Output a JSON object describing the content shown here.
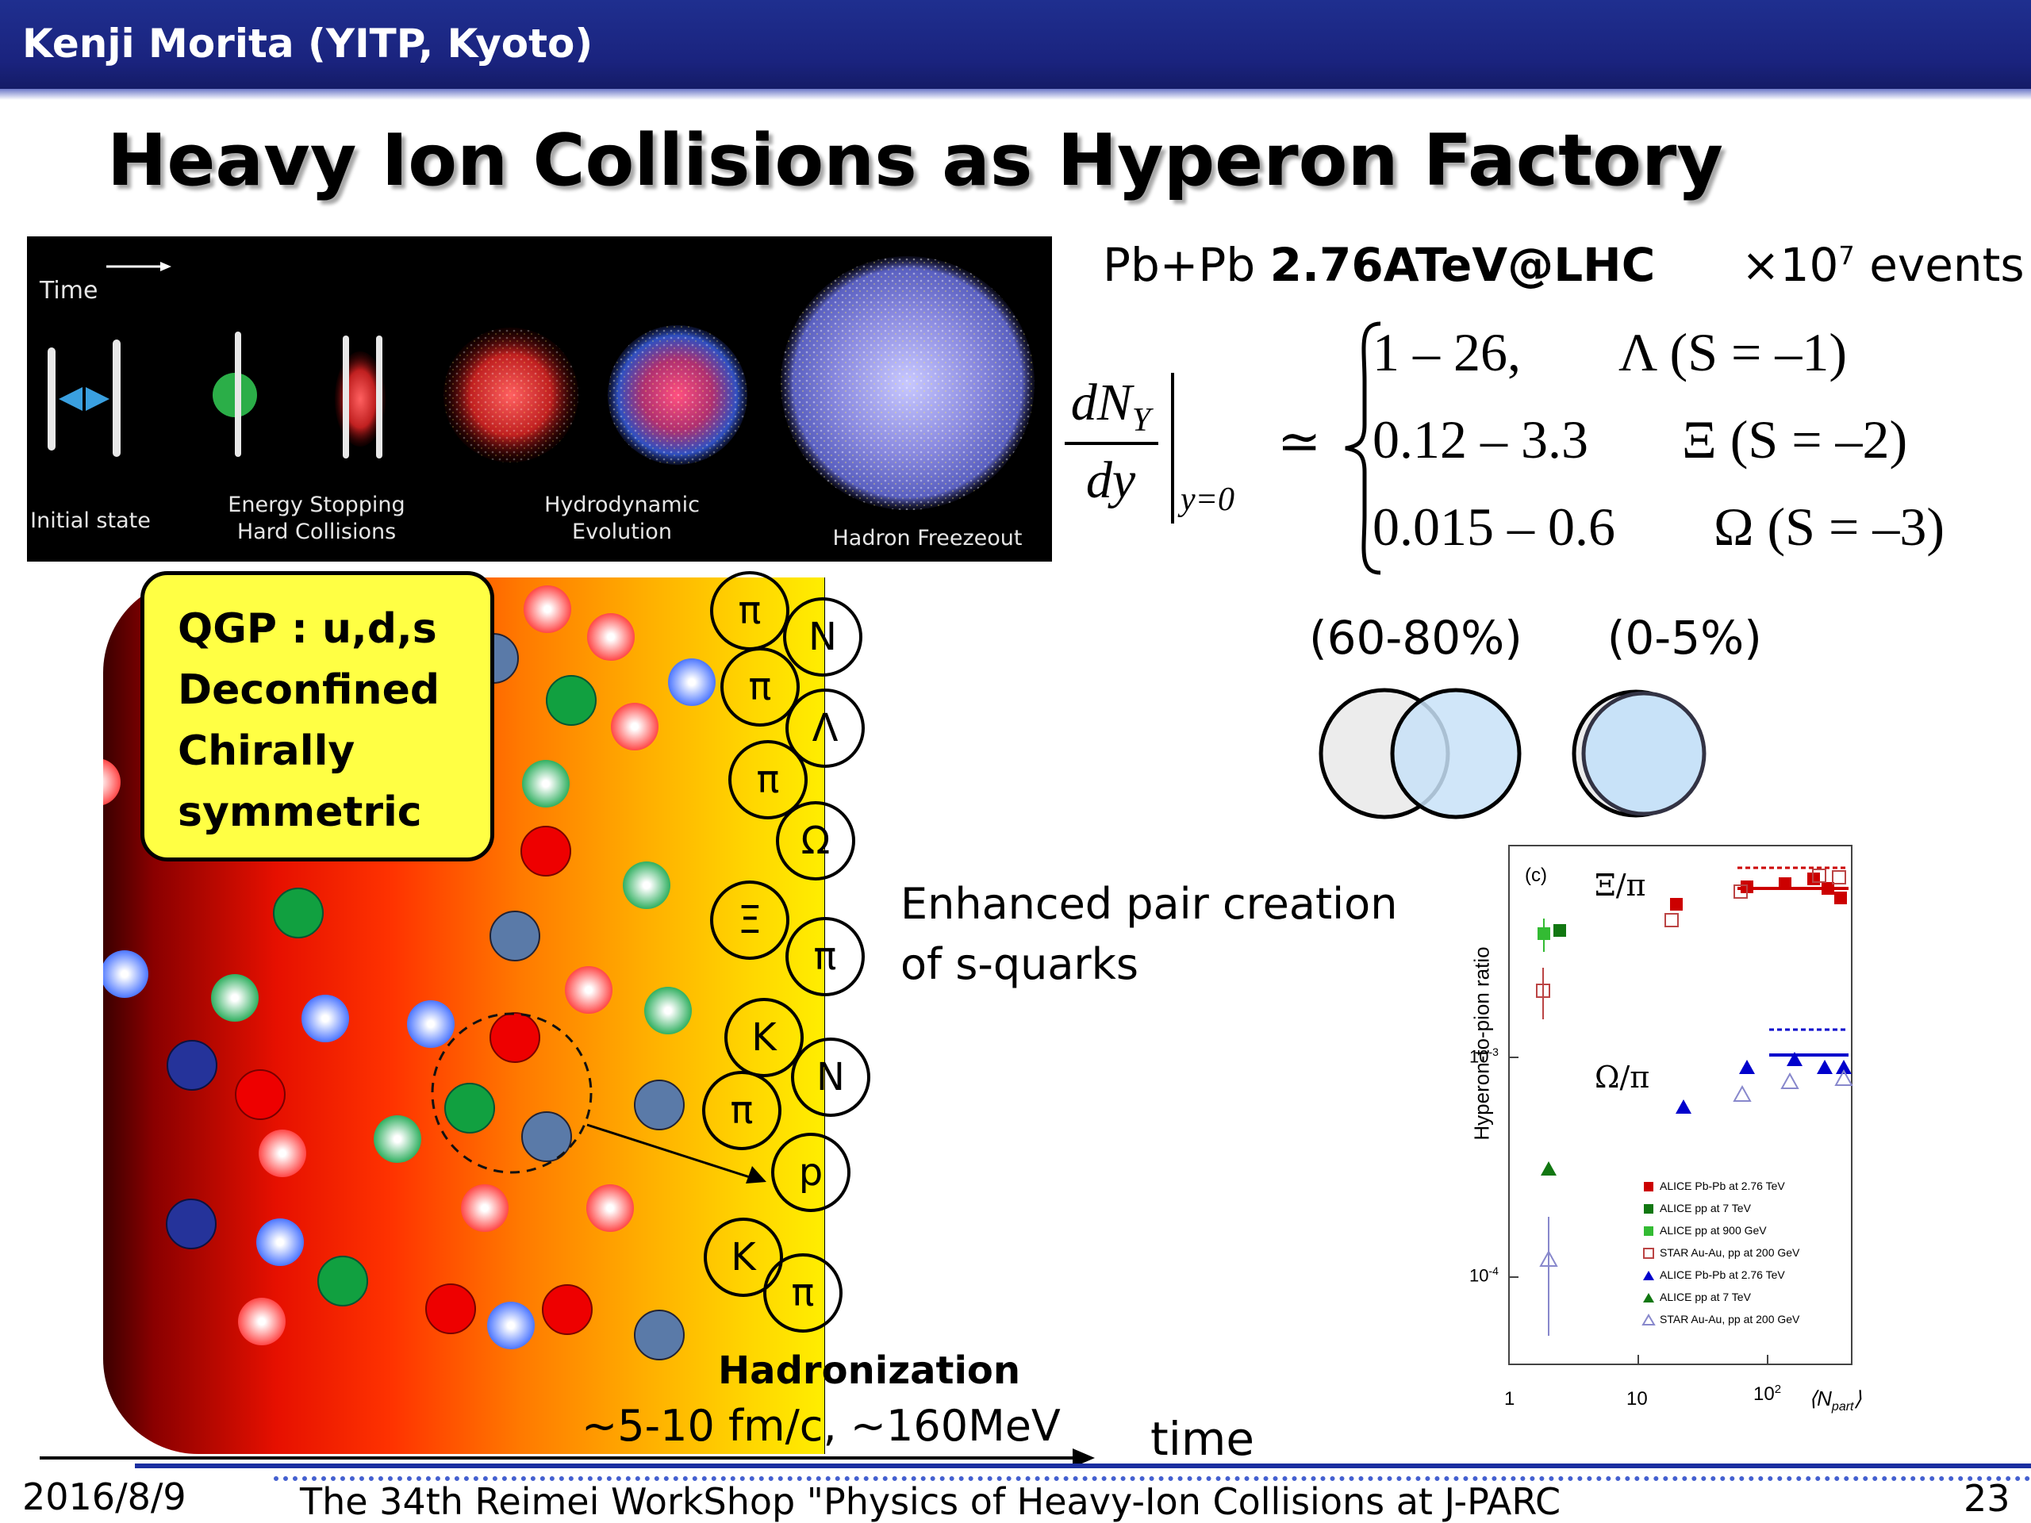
{
  "header": {
    "author": "Kenji Morita (YITP, Kyoto)"
  },
  "slide": {
    "title": "Heavy Ion Collisions as Hyperon Factory"
  },
  "collision_image": {
    "time_label": "Time",
    "stages": [
      "Initial state",
      "Energy Stopping\nHard Collisions",
      "Hydrodynamic\nEvolution",
      "Hadron Freezeout"
    ]
  },
  "measurement": {
    "system": "Pb+Pb",
    "energy": "2.76ATeV@LHC",
    "events": "×10",
    "events_exp": "7",
    "events_unit": " events",
    "lhs_num": "dN",
    "lhs_num_sub": "Y",
    "lhs_den": "dy",
    "lhs_eval": "y=0",
    "approx": "≃",
    "rows": [
      {
        "range": "1 – 26,",
        "particle": "Λ (S  = –1)"
      },
      {
        "range": "0.12 – 3.3",
        "particle": "Ξ (S  = –2)"
      },
      {
        "range": "0.015 – 0.6",
        "particle": "Ω (S  = –3)"
      }
    ]
  },
  "qgp": {
    "lines": [
      "QGP : u,d,s",
      "Deconfined",
      "Chirally",
      "symmetric"
    ]
  },
  "hadrons": [
    "π",
    "N",
    "π",
    "Λ",
    "π",
    "Ω",
    "Ξ",
    "π",
    "K",
    "N",
    "π",
    "p",
    "K",
    "π"
  ],
  "enhanced": {
    "line1": "Enhanced pair creation",
    "line2": "of s-quarks"
  },
  "centrality": {
    "peripheral": "(60-80%)",
    "central": "(0-5%)"
  },
  "ratio_plot": {
    "panel": "(c)",
    "ylabel": "Hyperon-to-pion ratio",
    "xlabel": "⟨N",
    "xlabel_sub": "part",
    "xlabel_end": "⟩",
    "ytick_mid": "10",
    "ytick_mid_exp": "-3",
    "ytick_low": "10",
    "ytick_low_exp": "-4",
    "xticks": [
      "1",
      "10",
      "10"
    ],
    "xtick_last_exp": "2",
    "xi_label": "Ξ/π",
    "omega_label": "Ω/π",
    "legend": [
      {
        "label": "ALICE Pb-Pb at 2.76 TeV",
        "color": "#cc0000",
        "marker": "square"
      },
      {
        "label": "ALICE pp at 7 TeV",
        "color": "#117711",
        "marker": "square"
      },
      {
        "label": "ALICE pp at 900 GeV",
        "color": "#33bb33",
        "marker": "square"
      },
      {
        "label": "STAR Au-Au, pp at 200 GeV",
        "color": "#bb4444",
        "marker": "open-square"
      },
      {
        "label": "ALICE Pb-Pb at 2.76 TeV",
        "color": "#0000cc",
        "marker": "triangle"
      },
      {
        "label": "ALICE pp at 7 TeV",
        "color": "#117711",
        "marker": "triangle"
      },
      {
        "label": "STAR Au-Au, pp at 200 GeV",
        "color": "#8888cc",
        "marker": "open-triangle"
      }
    ]
  },
  "timeline": {
    "hadronization": "Hadronization",
    "scales": "~5-10 fm/c, ~160MeV",
    "time_label": "time"
  },
  "footer": {
    "date": "2016/8/9",
    "title": "The 34th Reimei WorkShop \"Physics of Heavy-Ion Collisions at J-PARC",
    "page": "23"
  }
}
